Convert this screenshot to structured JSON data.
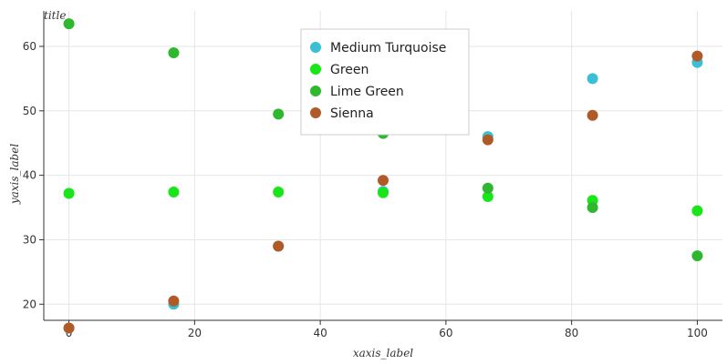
{
  "chart_data": {
    "type": "scatter",
    "title": "title",
    "xlabel": "xaxis_label",
    "ylabel": "yaxis_label",
    "xlim": [
      -4,
      104
    ],
    "ylim": [
      17.5,
      65.5
    ],
    "x_ticks": [
      0,
      20,
      40,
      60,
      80,
      100
    ],
    "y_ticks": [
      20,
      30,
      40,
      50,
      60
    ],
    "grid": true,
    "legend_placement": "top-center",
    "x": [
      0,
      16.67,
      33.33,
      50,
      66.67,
      83.33,
      100
    ],
    "series": [
      {
        "name": "Medium Turquoise",
        "color": "#3bbfd4",
        "values": [
          16.3,
          20.0,
          29.0,
          37.5,
          46.0,
          55.0,
          57.5
        ]
      },
      {
        "name": "Green",
        "color": "#19e619",
        "values": [
          37.2,
          37.4,
          37.4,
          37.3,
          36.7,
          36.1,
          34.5
        ]
      },
      {
        "name": "Lime Green",
        "color": "#2fb82f",
        "values": [
          63.5,
          59.0,
          49.5,
          46.5,
          38.0,
          35.0,
          27.5
        ]
      },
      {
        "name": "Sienna",
        "color": "#b05a28",
        "values": [
          16.3,
          20.5,
          29.0,
          39.2,
          45.5,
          49.3,
          58.5
        ]
      }
    ]
  }
}
